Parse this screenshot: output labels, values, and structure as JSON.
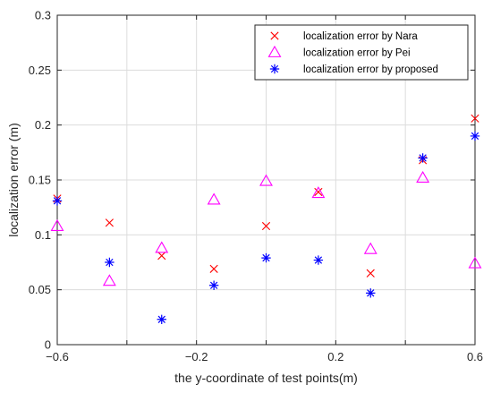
{
  "chart_data": {
    "type": "scatter",
    "xlabel": "the y-coordinate of test points(m)",
    "ylabel": "localization error (m)",
    "xlim": [
      -0.6,
      0.6
    ],
    "ylim": [
      0,
      0.3
    ],
    "xticks": [
      -0.6,
      -0.4,
      -0.2,
      0,
      0.2,
      0.4,
      0.6
    ],
    "yticks": [
      0,
      0.05,
      0.1,
      0.15,
      0.2,
      0.25,
      0.3
    ],
    "xtick_labels": [
      "−0.6",
      "",
      "−0.2",
      "",
      "0.2",
      "",
      "0.6"
    ],
    "ytick_labels": [
      "0",
      "0.05",
      "0.1",
      "0.15",
      "0.2",
      "0.25",
      "0.3"
    ],
    "grid": true,
    "legend_position": "top-right",
    "series": [
      {
        "name": "localization error by Nara",
        "marker": "x",
        "color": "#ff0000",
        "x": [
          -0.6,
          -0.45,
          -0.3,
          -0.15,
          0,
          0.15,
          0.3,
          0.45,
          0.6
        ],
        "y": [
          0.133,
          0.111,
          0.081,
          0.069,
          0.108,
          0.139,
          0.065,
          0.168,
          0.206
        ]
      },
      {
        "name": "localization error by Pei",
        "marker": "triangle",
        "color": "#ff00ff",
        "x": [
          -0.6,
          -0.45,
          -0.3,
          -0.15,
          0,
          0.15,
          0.3,
          0.45,
          0.6
        ],
        "y": [
          0.108,
          0.058,
          0.088,
          0.132,
          0.149,
          0.138,
          0.087,
          0.152,
          0.074
        ]
      },
      {
        "name": "localization error by proposed",
        "marker": "asterisk",
        "color": "#0000ff",
        "x": [
          -0.6,
          -0.45,
          -0.3,
          -0.15,
          0,
          0.15,
          0.3,
          0.45,
          0.6
        ],
        "y": [
          0.131,
          0.075,
          0.023,
          0.054,
          0.079,
          0.077,
          0.047,
          0.17,
          0.19
        ]
      }
    ]
  }
}
